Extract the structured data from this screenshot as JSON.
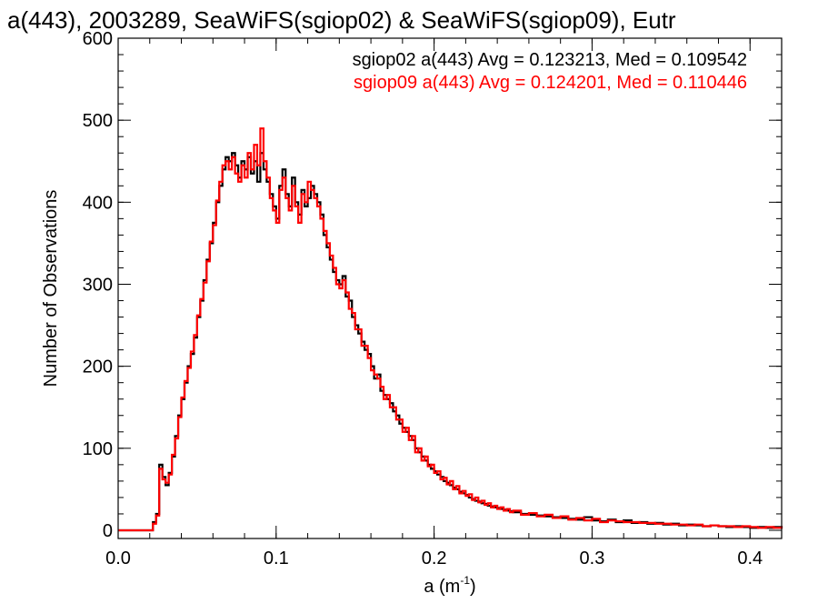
{
  "chart_data": {
    "type": "histogram",
    "title": "a(443), 2003289, SeaWiFS(sgiop02) & SeaWiFS(sgiop09), Eutr",
    "xlabel": "a (m",
    "xlabel_sup": "-1",
    "xlabel_end": ")",
    "ylabel": "Number of Observations",
    "xlim": [
      0.0,
      0.42
    ],
    "ylim": [
      -10,
      600
    ],
    "xticks": [
      {
        "value": 0.0,
        "label": "0.0"
      },
      {
        "value": 0.1,
        "label": "0.1"
      },
      {
        "value": 0.2,
        "label": "0.2"
      },
      {
        "value": 0.3,
        "label": "0.3"
      },
      {
        "value": 0.4,
        "label": "0.4"
      }
    ],
    "yticks": [
      {
        "value": 0,
        "label": "0"
      },
      {
        "value": 100,
        "label": "100"
      },
      {
        "value": 200,
        "label": "200"
      },
      {
        "value": 300,
        "label": "300"
      },
      {
        "value": 400,
        "label": "400"
      },
      {
        "value": 500,
        "label": "500"
      },
      {
        "value": 600,
        "label": "600"
      }
    ],
    "series": [
      {
        "name": "sgiop02",
        "color": "#000000",
        "legend": "sgiop02 a(443) Avg = 0.123213, Med = 0.109542",
        "points": [
          [
            0.0,
            0
          ],
          [
            0.02,
            0
          ],
          [
            0.022,
            10
          ],
          [
            0.024,
            20
          ],
          [
            0.026,
            80
          ],
          [
            0.028,
            65
          ],
          [
            0.03,
            55
          ],
          [
            0.032,
            70
          ],
          [
            0.034,
            90
          ],
          [
            0.036,
            115
          ],
          [
            0.038,
            140
          ],
          [
            0.04,
            160
          ],
          [
            0.042,
            180
          ],
          [
            0.044,
            200
          ],
          [
            0.046,
            215
          ],
          [
            0.048,
            235
          ],
          [
            0.05,
            260
          ],
          [
            0.052,
            280
          ],
          [
            0.054,
            305
          ],
          [
            0.056,
            330
          ],
          [
            0.058,
            350
          ],
          [
            0.06,
            375
          ],
          [
            0.062,
            400
          ],
          [
            0.064,
            420
          ],
          [
            0.066,
            440
          ],
          [
            0.068,
            455
          ],
          [
            0.07,
            450
          ],
          [
            0.072,
            460
          ],
          [
            0.074,
            445
          ],
          [
            0.076,
            430
          ],
          [
            0.078,
            450
          ],
          [
            0.08,
            440
          ],
          [
            0.082,
            455
          ],
          [
            0.084,
            435
          ],
          [
            0.086,
            450
          ],
          [
            0.088,
            425
          ],
          [
            0.09,
            460
          ],
          [
            0.092,
            440
          ],
          [
            0.094,
            425
          ],
          [
            0.096,
            410
          ],
          [
            0.098,
            395
          ],
          [
            0.1,
            380
          ],
          [
            0.102,
            420
          ],
          [
            0.104,
            440
          ],
          [
            0.106,
            410
          ],
          [
            0.108,
            395
          ],
          [
            0.11,
            430
          ],
          [
            0.112,
            400
          ],
          [
            0.114,
            385
          ],
          [
            0.116,
            415
          ],
          [
            0.118,
            395
          ],
          [
            0.12,
            405
          ],
          [
            0.122,
            420
          ],
          [
            0.124,
            410
          ],
          [
            0.126,
            400
          ],
          [
            0.128,
            385
          ],
          [
            0.13,
            360
          ],
          [
            0.132,
            345
          ],
          [
            0.134,
            330
          ],
          [
            0.136,
            315
          ],
          [
            0.138,
            305
          ],
          [
            0.14,
            300
          ],
          [
            0.142,
            310
          ],
          [
            0.144,
            285
          ],
          [
            0.146,
            280
          ],
          [
            0.148,
            260
          ],
          [
            0.15,
            250
          ],
          [
            0.152,
            240
          ],
          [
            0.154,
            230
          ],
          [
            0.156,
            220
          ],
          [
            0.158,
            215
          ],
          [
            0.16,
            200
          ],
          [
            0.162,
            185
          ],
          [
            0.164,
            190
          ],
          [
            0.166,
            170
          ],
          [
            0.168,
            165
          ],
          [
            0.17,
            160
          ],
          [
            0.172,
            155
          ],
          [
            0.174,
            145
          ],
          [
            0.176,
            140
          ],
          [
            0.178,
            130
          ],
          [
            0.18,
            125
          ],
          [
            0.182,
            120
          ],
          [
            0.184,
            115
          ],
          [
            0.186,
            110
          ],
          [
            0.188,
            100
          ],
          [
            0.19,
            95
          ],
          [
            0.192,
            90
          ],
          [
            0.194,
            85
          ],
          [
            0.196,
            80
          ],
          [
            0.198,
            75
          ],
          [
            0.2,
            72
          ],
          [
            0.202,
            68
          ],
          [
            0.204,
            65
          ],
          [
            0.206,
            60
          ],
          [
            0.208,
            58
          ],
          [
            0.21,
            55
          ],
          [
            0.212,
            52
          ],
          [
            0.214,
            50
          ],
          [
            0.216,
            47
          ],
          [
            0.218,
            45
          ],
          [
            0.22,
            43
          ],
          [
            0.222,
            40
          ],
          [
            0.224,
            38
          ],
          [
            0.226,
            36
          ],
          [
            0.228,
            35
          ],
          [
            0.23,
            33
          ],
          [
            0.232,
            32
          ],
          [
            0.234,
            30
          ],
          [
            0.236,
            29
          ],
          [
            0.238,
            28
          ],
          [
            0.24,
            27
          ],
          [
            0.242,
            26
          ],
          [
            0.244,
            25
          ],
          [
            0.246,
            24
          ],
          [
            0.248,
            23
          ],
          [
            0.25,
            22
          ],
          [
            0.255,
            20
          ],
          [
            0.26,
            19
          ],
          [
            0.265,
            18
          ],
          [
            0.27,
            17
          ],
          [
            0.275,
            16
          ],
          [
            0.28,
            15
          ],
          [
            0.285,
            14
          ],
          [
            0.29,
            13
          ],
          [
            0.295,
            16
          ],
          [
            0.3,
            12
          ],
          [
            0.305,
            11
          ],
          [
            0.31,
            13
          ],
          [
            0.315,
            10
          ],
          [
            0.32,
            12
          ],
          [
            0.325,
            9
          ],
          [
            0.33,
            10
          ],
          [
            0.335,
            8
          ],
          [
            0.34,
            9
          ],
          [
            0.345,
            7
          ],
          [
            0.35,
            8
          ],
          [
            0.355,
            6
          ],
          [
            0.36,
            7
          ],
          [
            0.365,
            6
          ],
          [
            0.37,
            5
          ],
          [
            0.375,
            6
          ],
          [
            0.38,
            5
          ],
          [
            0.385,
            4
          ],
          [
            0.39,
            5
          ],
          [
            0.395,
            4
          ],
          [
            0.4,
            3
          ],
          [
            0.405,
            4
          ],
          [
            0.41,
            3
          ],
          [
            0.415,
            4
          ],
          [
            0.42,
            3
          ]
        ]
      },
      {
        "name": "sgiop09",
        "color": "#ff0000",
        "legend": "sgiop09 a(443) Avg = 0.124201, Med = 0.110446",
        "points": [
          [
            0.0,
            0
          ],
          [
            0.02,
            0
          ],
          [
            0.022,
            8
          ],
          [
            0.024,
            18
          ],
          [
            0.026,
            75
          ],
          [
            0.028,
            62
          ],
          [
            0.03,
            58
          ],
          [
            0.032,
            68
          ],
          [
            0.034,
            92
          ],
          [
            0.036,
            112
          ],
          [
            0.038,
            138
          ],
          [
            0.04,
            162
          ],
          [
            0.042,
            182
          ],
          [
            0.044,
            198
          ],
          [
            0.046,
            218
          ],
          [
            0.048,
            238
          ],
          [
            0.05,
            262
          ],
          [
            0.052,
            282
          ],
          [
            0.054,
            302
          ],
          [
            0.056,
            328
          ],
          [
            0.058,
            352
          ],
          [
            0.06,
            372
          ],
          [
            0.062,
            402
          ],
          [
            0.064,
            425
          ],
          [
            0.066,
            445
          ],
          [
            0.068,
            450
          ],
          [
            0.07,
            440
          ],
          [
            0.072,
            455
          ],
          [
            0.074,
            435
          ],
          [
            0.076,
            425
          ],
          [
            0.078,
            445
          ],
          [
            0.08,
            430
          ],
          [
            0.082,
            460
          ],
          [
            0.084,
            440
          ],
          [
            0.086,
            470
          ],
          [
            0.088,
            445
          ],
          [
            0.09,
            490
          ],
          [
            0.092,
            450
          ],
          [
            0.094,
            430
          ],
          [
            0.096,
            405
          ],
          [
            0.098,
            390
          ],
          [
            0.1,
            375
          ],
          [
            0.102,
            415
          ],
          [
            0.104,
            430
          ],
          [
            0.106,
            405
          ],
          [
            0.108,
            390
          ],
          [
            0.11,
            420
          ],
          [
            0.112,
            395
          ],
          [
            0.114,
            375
          ],
          [
            0.116,
            410
          ],
          [
            0.118,
            400
          ],
          [
            0.12,
            425
          ],
          [
            0.122,
            415
          ],
          [
            0.124,
            405
          ],
          [
            0.126,
            395
          ],
          [
            0.128,
            380
          ],
          [
            0.13,
            365
          ],
          [
            0.132,
            350
          ],
          [
            0.134,
            335
          ],
          [
            0.136,
            320
          ],
          [
            0.138,
            300
          ],
          [
            0.14,
            295
          ],
          [
            0.142,
            305
          ],
          [
            0.144,
            290
          ],
          [
            0.146,
            270
          ],
          [
            0.148,
            265
          ],
          [
            0.15,
            245
          ],
          [
            0.152,
            245
          ],
          [
            0.154,
            225
          ],
          [
            0.156,
            225
          ],
          [
            0.158,
            210
          ],
          [
            0.16,
            195
          ],
          [
            0.162,
            190
          ],
          [
            0.164,
            185
          ],
          [
            0.166,
            175
          ],
          [
            0.168,
            160
          ],
          [
            0.17,
            165
          ],
          [
            0.172,
            150
          ],
          [
            0.174,
            150
          ],
          [
            0.176,
            135
          ],
          [
            0.178,
            135
          ],
          [
            0.18,
            120
          ],
          [
            0.182,
            125
          ],
          [
            0.184,
            110
          ],
          [
            0.186,
            115
          ],
          [
            0.188,
            95
          ],
          [
            0.19,
            100
          ],
          [
            0.192,
            85
          ],
          [
            0.194,
            90
          ],
          [
            0.196,
            78
          ],
          [
            0.198,
            80
          ],
          [
            0.2,
            70
          ],
          [
            0.202,
            72
          ],
          [
            0.204,
            62
          ],
          [
            0.206,
            64
          ],
          [
            0.208,
            56
          ],
          [
            0.21,
            60
          ],
          [
            0.212,
            50
          ],
          [
            0.214,
            54
          ],
          [
            0.216,
            45
          ],
          [
            0.218,
            48
          ],
          [
            0.22,
            42
          ],
          [
            0.222,
            44
          ],
          [
            0.224,
            37
          ],
          [
            0.226,
            40
          ],
          [
            0.228,
            34
          ],
          [
            0.23,
            36
          ],
          [
            0.232,
            31
          ],
          [
            0.234,
            33
          ],
          [
            0.236,
            28
          ],
          [
            0.238,
            30
          ],
          [
            0.24,
            26
          ],
          [
            0.242,
            28
          ],
          [
            0.244,
            24
          ],
          [
            0.246,
            26
          ],
          [
            0.248,
            22
          ],
          [
            0.25,
            24
          ],
          [
            0.255,
            19
          ],
          [
            0.26,
            21
          ],
          [
            0.265,
            17
          ],
          [
            0.27,
            19
          ],
          [
            0.275,
            15
          ],
          [
            0.28,
            17
          ],
          [
            0.285,
            13
          ],
          [
            0.29,
            15
          ],
          [
            0.295,
            12
          ],
          [
            0.3,
            14
          ],
          [
            0.305,
            10
          ],
          [
            0.31,
            12
          ],
          [
            0.315,
            11
          ],
          [
            0.32,
            10
          ],
          [
            0.325,
            10
          ],
          [
            0.33,
            9
          ],
          [
            0.335,
            9
          ],
          [
            0.34,
            8
          ],
          [
            0.345,
            8
          ],
          [
            0.35,
            7
          ],
          [
            0.355,
            7
          ],
          [
            0.36,
            6
          ],
          [
            0.365,
            7
          ],
          [
            0.37,
            5
          ],
          [
            0.375,
            6
          ],
          [
            0.38,
            5
          ],
          [
            0.385,
            5
          ],
          [
            0.39,
            4
          ],
          [
            0.395,
            5
          ],
          [
            0.4,
            4
          ],
          [
            0.405,
            3
          ],
          [
            0.41,
            4
          ],
          [
            0.415,
            3
          ],
          [
            0.42,
            5
          ]
        ]
      }
    ]
  }
}
